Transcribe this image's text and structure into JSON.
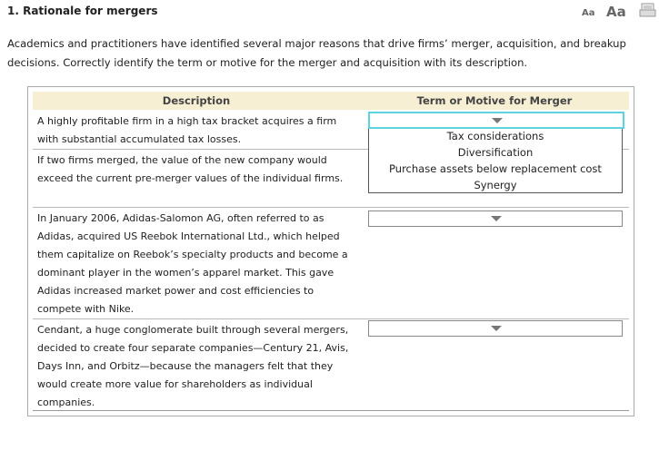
{
  "header": {
    "title": "1. Rationale for mergers",
    "font_small": "Aa",
    "font_large": "Aa"
  },
  "intro": "Academics and practitioners have identified several major reasons that drive firms’ merger, acquisition, and breakup decisions. Correctly identify the term or motive for the merger and acquisition with its description.",
  "table": {
    "headers": [
      "Description",
      "Term or Motive for Merger"
    ],
    "rows": [
      {
        "description": "A highly profitable firm in a high tax bracket acquires a firm with substantial accumulated tax losses."
      },
      {
        "description": "If two firms merged, the value of the new company would exceed the current pre-merger values of the individual firms."
      },
      {
        "description": "In January 2006, Adidas-Salomon AG, often referred to as Adidas, acquired US Reebok International Ltd., which helped them capitalize on Reebok’s specialty products and become a dominant player in the women’s apparel market. This gave Adidas increased market power and cost efficiencies to compete with Nike."
      },
      {
        "description": "Cendant, a huge conglomerate built through several mergers, decided to create four separate companies—Century 21, Avis, Days Inn, and Orbitz—because the managers felt that they would create more value for shareholders as individual companies."
      }
    ]
  },
  "dropdown_options": [
    "Tax considerations",
    "Diversification",
    "Purchase assets below replacement cost",
    "Synergy"
  ]
}
